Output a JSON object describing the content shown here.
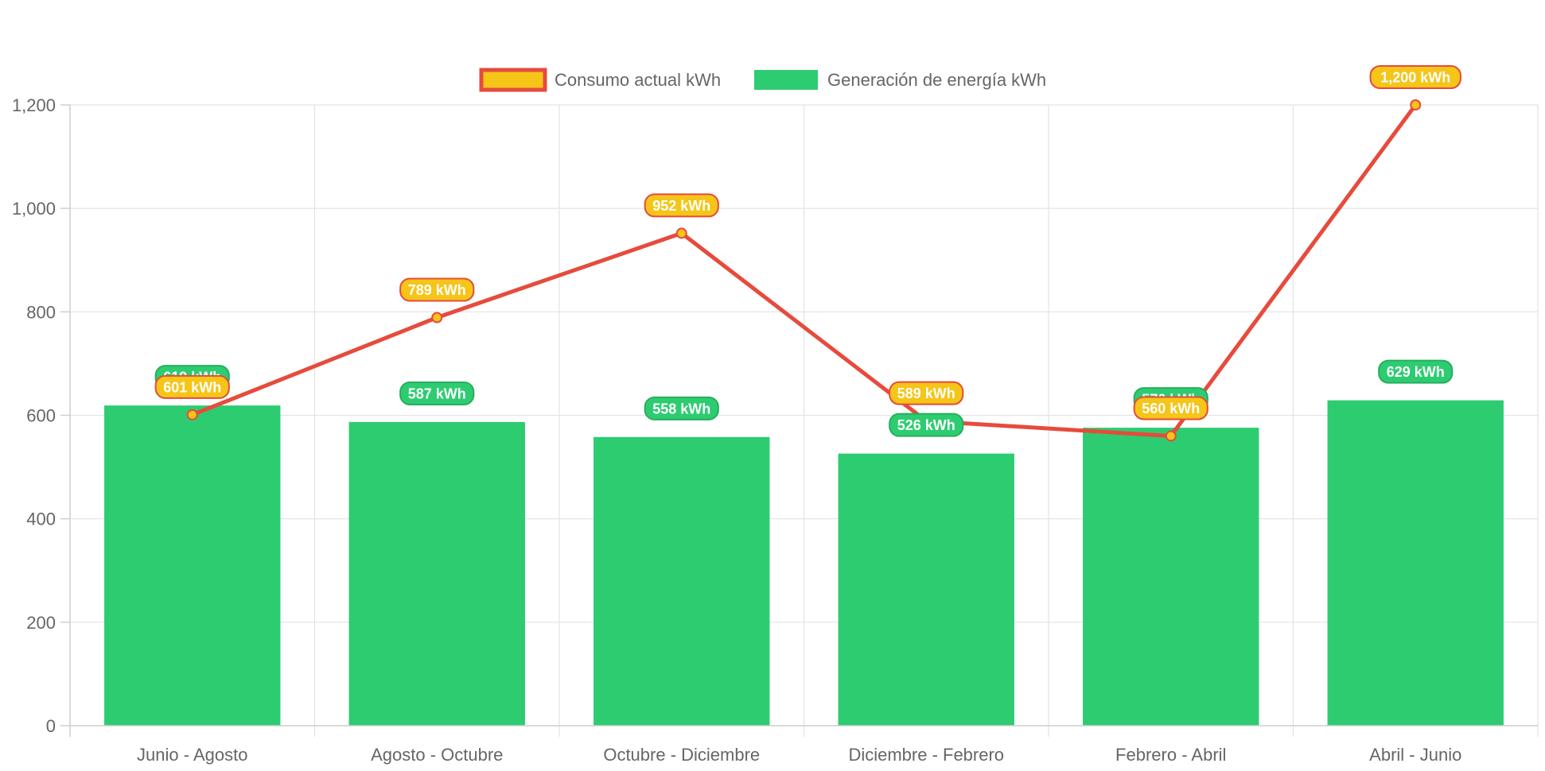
{
  "colors": {
    "line": "#e64b3c",
    "point_fill": "#f5c518",
    "bar": "#2ecc71",
    "grid": "#e3e3e3",
    "text": "#666666"
  },
  "chart_data": {
    "type": "bar",
    "categories": [
      "Junio - Agosto",
      "Agosto - Octubre",
      "Octubre - Diciembre",
      "Diciembre - Febrero",
      "Febrero - Abril",
      "Abril - Junio"
    ],
    "series": [
      {
        "name": "Consumo actual kWh",
        "type": "line",
        "values": [
          601,
          789,
          952,
          589,
          560,
          1200
        ],
        "labels": [
          "601 kWh",
          "789 kWh",
          "952 kWh",
          "589 kWh",
          "560 kWh",
          "1,200 kWh"
        ]
      },
      {
        "name": "Generación de energía kWh",
        "type": "bar",
        "values": [
          619,
          587,
          558,
          526,
          576,
          629
        ],
        "labels": [
          "619 kWh",
          "587 kWh",
          "558 kWh",
          "526 kWh",
          "576 kWh",
          "629 kWh"
        ]
      }
    ],
    "ylim": [
      0,
      1200
    ],
    "yticks": [
      0,
      200,
      400,
      600,
      800,
      1000,
      1200
    ],
    "ytick_labels": [
      "0",
      "200",
      "400",
      "600",
      "800",
      "1,000",
      "1,200"
    ],
    "grid": true,
    "legend_position": "top"
  }
}
